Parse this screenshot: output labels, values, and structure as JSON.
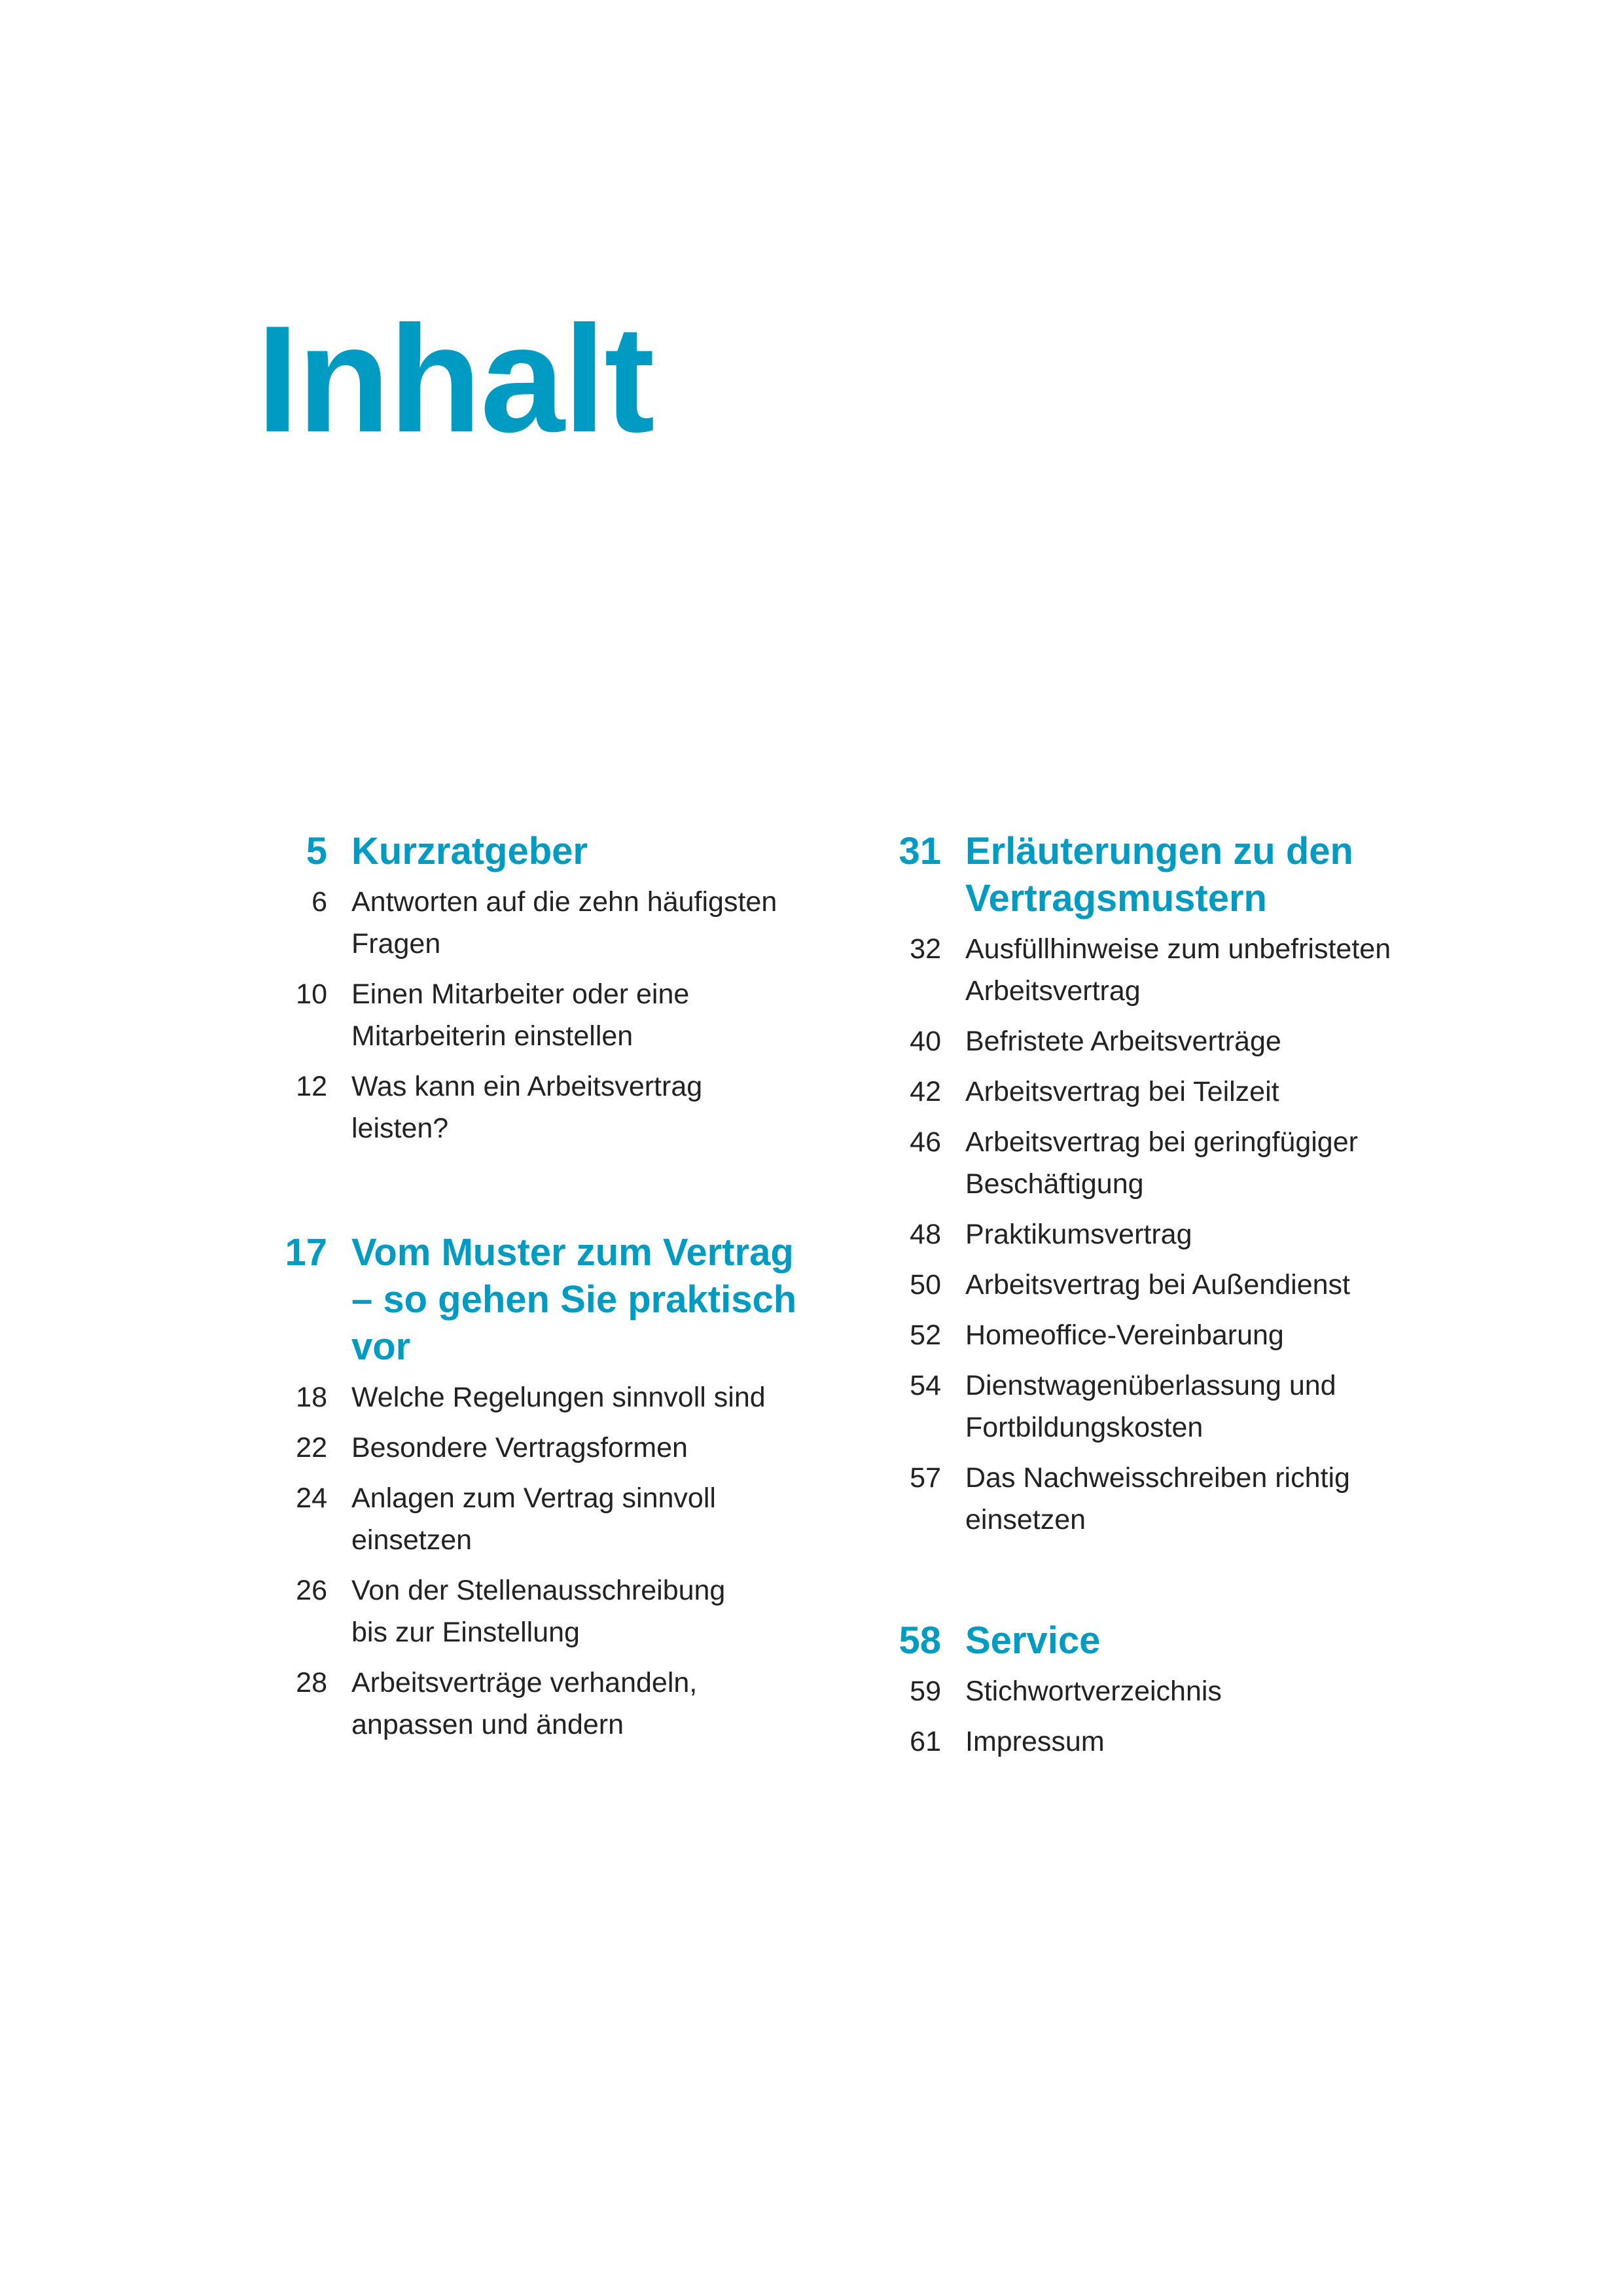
{
  "title": "Inhalt",
  "accent_color": "#009bc3",
  "sections": [
    {
      "page": "5",
      "heading": [
        "Kurzratgeber"
      ],
      "items": [
        {
          "page": "6",
          "lines": [
            "Antworten auf die zehn häufigsten",
            "Fragen"
          ]
        },
        {
          "page": "10",
          "lines": [
            "Einen Mitarbeiter oder eine",
            "Mitarbeiterin einstellen"
          ]
        },
        {
          "page": "12",
          "lines": [
            "Was kann ein Arbeitsvertrag",
            "leisten?"
          ]
        }
      ]
    },
    {
      "page": "17",
      "heading": [
        "Vom Muster zum Vertrag",
        "– so gehen Sie praktisch",
        "vor"
      ],
      "items": [
        {
          "page": "18",
          "lines": [
            "Welche Regelungen sinnvoll sind"
          ]
        },
        {
          "page": "22",
          "lines": [
            "Besondere Vertragsformen"
          ]
        },
        {
          "page": "24",
          "lines": [
            "Anlagen zum Vertrag sinnvoll",
            "einsetzen"
          ]
        },
        {
          "page": "26",
          "lines": [
            "Von der Stellenausschreibung",
            "bis zur Einstellung"
          ]
        },
        {
          "page": "28",
          "lines": [
            "Arbeitsverträge verhandeln,",
            "anpassen und ändern"
          ]
        }
      ]
    },
    {
      "page": "31",
      "heading": [
        "Erläuterungen zu den",
        "Vertragsmustern"
      ],
      "items": [
        {
          "page": "32",
          "lines": [
            "Ausfüllhinweise zum unbefristeten",
            "Arbeitsvertrag"
          ]
        },
        {
          "page": "40",
          "lines": [
            "Befristete Arbeitsverträge"
          ]
        },
        {
          "page": "42",
          "lines": [
            "Arbeitsvertrag bei Teilzeit"
          ]
        },
        {
          "page": "46",
          "lines": [
            "Arbeitsvertrag bei geringfügiger",
            "Beschäftigung"
          ]
        },
        {
          "page": "48",
          "lines": [
            "Praktikumsvertrag"
          ]
        },
        {
          "page": "50",
          "lines": [
            "Arbeitsvertrag bei Außendienst"
          ]
        },
        {
          "page": "52",
          "lines": [
            "Homeoffice-Vereinbarung"
          ]
        },
        {
          "page": "54",
          "lines": [
            "Dienstwagenüberlassung und",
            "Fortbildungskosten"
          ]
        },
        {
          "page": "57",
          "lines": [
            "Das Nachweisschreiben richtig",
            "einsetzen"
          ]
        }
      ]
    },
    {
      "page": "58",
      "heading": [
        "Service"
      ],
      "items": [
        {
          "page": "59",
          "lines": [
            "Stichwortverzeichnis"
          ]
        },
        {
          "page": "61",
          "lines": [
            "Impressum"
          ]
        }
      ]
    }
  ]
}
